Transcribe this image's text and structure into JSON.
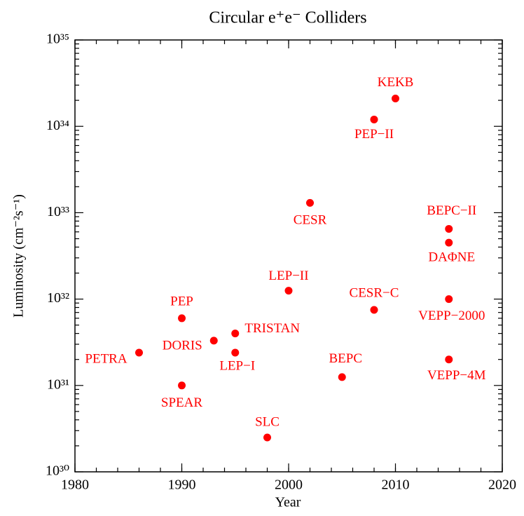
{
  "chart_data": {
    "type": "scatter",
    "title": "Circular e⁺e⁻ Colliders",
    "x_label": "Year",
    "y_label": "Luminosity (cm⁻²s⁻¹)",
    "labels": [
      "PETRA",
      "PEP",
      "SPEAR",
      "DORIS",
      "TRISTAN",
      "LEP−I",
      "SLC",
      "LEP−II",
      "CESR",
      "BEPC",
      "CESR−C",
      "PEP−II",
      "KEKB",
      "BEPC−II",
      "DAΦNE",
      "VEPP−2000",
      "VEPP−4M"
    ],
    "x": [
      1986,
      1990,
      1990,
      1993,
      1995,
      1995,
      1998,
      2000,
      2002,
      2005,
      2008,
      2008,
      2010,
      2015,
      2015,
      2015,
      2015
    ],
    "values": [
      2.4e+31,
      6e+31,
      1e+31,
      3.3e+31,
      4e+31,
      2.4e+31,
      2.5e+30,
      1.25e+32,
      1.3e+33,
      1.25e+31,
      7.5e+31,
      1.2e+34,
      2.1e+34,
      6.5e+32,
      4.5e+32,
      1e+32,
      2e+31
    ],
    "color": "#ff0000",
    "xlim": [
      1980,
      2020
    ],
    "xticks": [
      1980,
      1990,
      2000,
      2010,
      2020
    ],
    "ylim": [
      1e+30,
      1e+35
    ],
    "yticks": [
      {
        "value": 1e+30,
        "label": "10³⁰"
      },
      {
        "value": 1e+31,
        "label": "10³¹"
      },
      {
        "value": 1e+32,
        "label": "10³²"
      },
      {
        "value": 1e+33,
        "label": "10³³"
      },
      {
        "value": 1e+34,
        "label": "10³⁴"
      },
      {
        "value": 1e+35,
        "label": "10³⁵"
      }
    ],
    "log_y": true,
    "grid": false
  }
}
